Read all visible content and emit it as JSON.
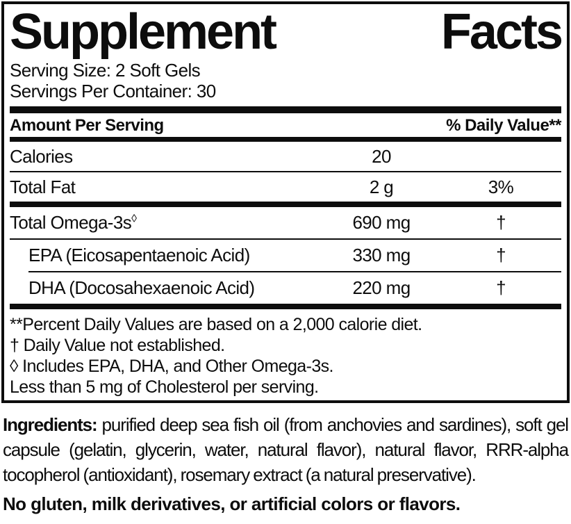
{
  "title_words": [
    "Supplement",
    "Facts"
  ],
  "serving": {
    "serving_size": "Serving Size: 2 Soft Gels",
    "servings_per_container": "Servings Per Container: 30"
  },
  "table": {
    "header": {
      "amount_per_serving": "Amount Per Serving",
      "daily_value": "% Daily Value**"
    },
    "rows": [
      {
        "name": "Calories",
        "amount": "20",
        "dv": ""
      },
      {
        "name": "Total Fat",
        "amount": "2 g",
        "dv": "3%"
      }
    ],
    "omega_rows": [
      {
        "name": "Total Omega-3s",
        "symbol": "◊",
        "amount": "690 mg",
        "dv": "†"
      },
      {
        "name": "EPA (Eicosapentaenoic Acid)",
        "amount": "330 mg",
        "dv": "†"
      },
      {
        "name": "DHA (Docosahexaenoic Acid)",
        "amount": "220 mg",
        "dv": "†"
      }
    ]
  },
  "footnotes": [
    "**Percent Daily Values are based on a 2,000 calorie diet.",
    "† Daily Value not established.",
    "◊ Includes EPA, DHA, and Other Omega-3s.",
    "Less than 5 mg of Cholesterol per serving."
  ],
  "ingredients": {
    "label": "Ingredients:",
    "text": " purified deep sea fish oil (from anchovies and sardines), soft gel capsule (gelatin, glycerin, water, natural flavor), natural flavor, RRR-alpha tocopherol (antioxidant), rosemary extract (a natural preservative)."
  },
  "allergen_statement": "No gluten, milk derivatives, or artificial colors or flavors.",
  "colors": {
    "text": "#0d0d0d",
    "background": "#ffffff",
    "border": "#0d0d0d"
  }
}
